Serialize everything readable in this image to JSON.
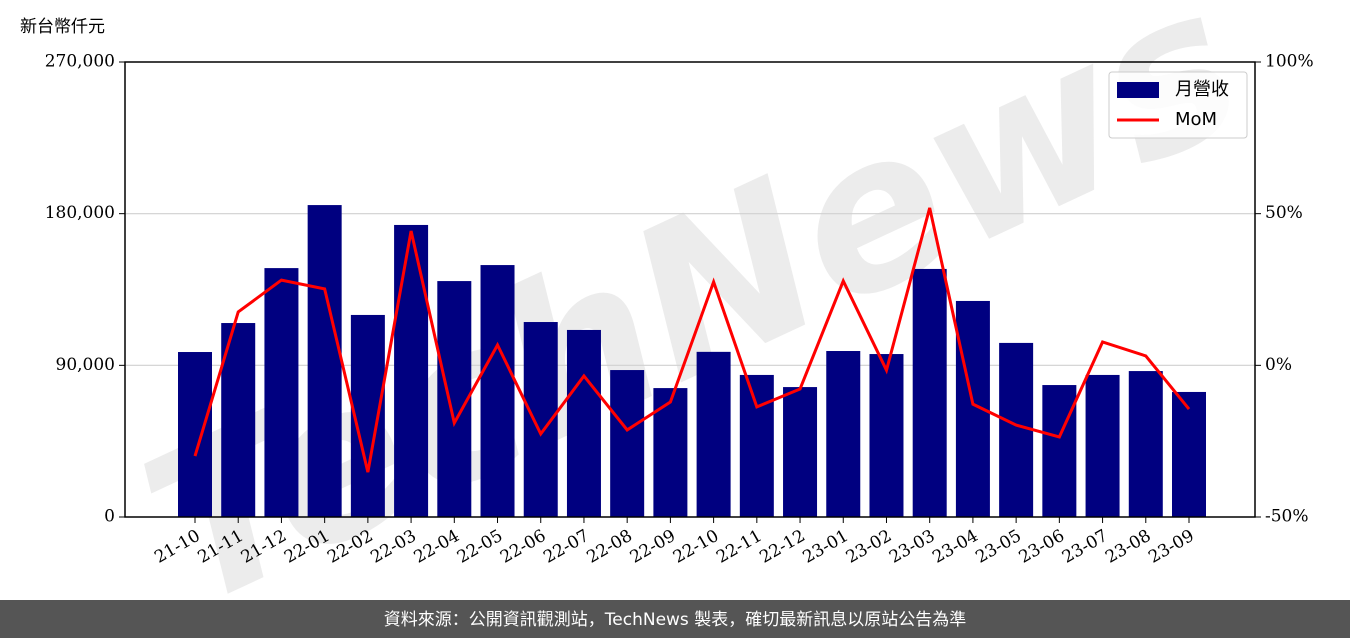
{
  "chart_data": {
    "type": "bar_line",
    "y_label": "新台幣仟元",
    "watermark": "TechNews",
    "footer": "資料來源：公開資訊觀測站，TechNews 製表，確切最新訊息以原站公告為準",
    "categories": [
      "21-10",
      "21-11",
      "21-12",
      "22-01",
      "22-02",
      "22-03",
      "22-04",
      "22-05",
      "22-06",
      "22-07",
      "22-08",
      "22-09",
      "22-10",
      "22-11",
      "22-12",
      "23-01",
      "23-02",
      "23-03",
      "23-04",
      "23-05",
      "23-06",
      "23-07",
      "23-08",
      "23-09"
    ],
    "series": [
      {
        "name": "月營收",
        "color": "#000080",
        "type": "bar",
        "axis": "y",
        "values": [
          97900,
          115100,
          147700,
          185100,
          119900,
          173300,
          140000,
          149500,
          115700,
          111000,
          87200,
          76500,
          98000,
          84300,
          77100,
          98500,
          96700,
          147200,
          128200,
          103300,
          78300,
          84300,
          86600,
          74200
        ]
      },
      {
        "name": "MoM",
        "color": "#ff0000",
        "type": "line",
        "axis": "y2",
        "values": [
          -29.9,
          17.6,
          28.1,
          25.2,
          -35.2,
          44.3,
          -19.0,
          6.7,
          -22.6,
          -3.5,
          -21.3,
          -12.1,
          27.5,
          -13.7,
          -7.8,
          27.8,
          -1.6,
          51.9,
          -12.8,
          -19.7,
          -23.6,
          7.7,
          3.1,
          -14.4
        ]
      }
    ],
    "ylim": [
      0,
      270000
    ],
    "yticks": [
      0,
      {
        "value": 90000,
        "label": "90,000"
      },
      {
        "value": 180000,
        "label": "180,000"
      },
      {
        "value": 270000,
        "label": "270,000"
      }
    ],
    "y2lim": [
      -50,
      100
    ],
    "y2ticks": [
      {
        "value": -50,
        "label": "-50%"
      },
      {
        "value": 0,
        "label": "0%"
      },
      {
        "value": 50,
        "label": "50%"
      },
      {
        "value": 100,
        "label": "100%"
      }
    ],
    "grid": true,
    "legend": "upper right"
  }
}
